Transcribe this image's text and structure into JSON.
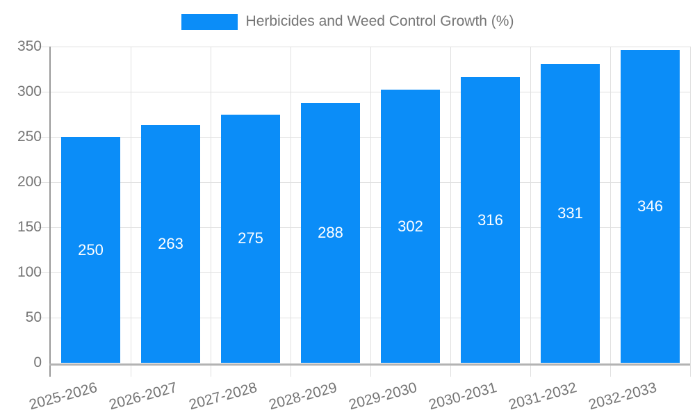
{
  "chart_data": {
    "type": "bar",
    "title": "",
    "legend": {
      "label": "Herbicides and Weed Control Growth (%)",
      "position": "top"
    },
    "categories": [
      "2025-2026",
      "2026-2027",
      "2027-2028",
      "2028-2029",
      "2029-2030",
      "2030-2031",
      "2031-2032",
      "2032-2033"
    ],
    "values": [
      250,
      263,
      275,
      288,
      302,
      316,
      331,
      346
    ],
    "xlabel": "",
    "ylabel": "",
    "ylim": [
      0,
      350
    ],
    "yticks": [
      0,
      50,
      100,
      150,
      200,
      250,
      300,
      350
    ],
    "grid": true,
    "value_labels_shown": true,
    "x_label_rotation_deg": -15,
    "colors": {
      "bar": "#0b8df8",
      "value_label": "#ffffff",
      "axis_text": "#757575",
      "grid": "#e0e0e0",
      "axis_line": "#999999",
      "baseline": "#b3b3b3",
      "background": "#ffffff"
    }
  }
}
